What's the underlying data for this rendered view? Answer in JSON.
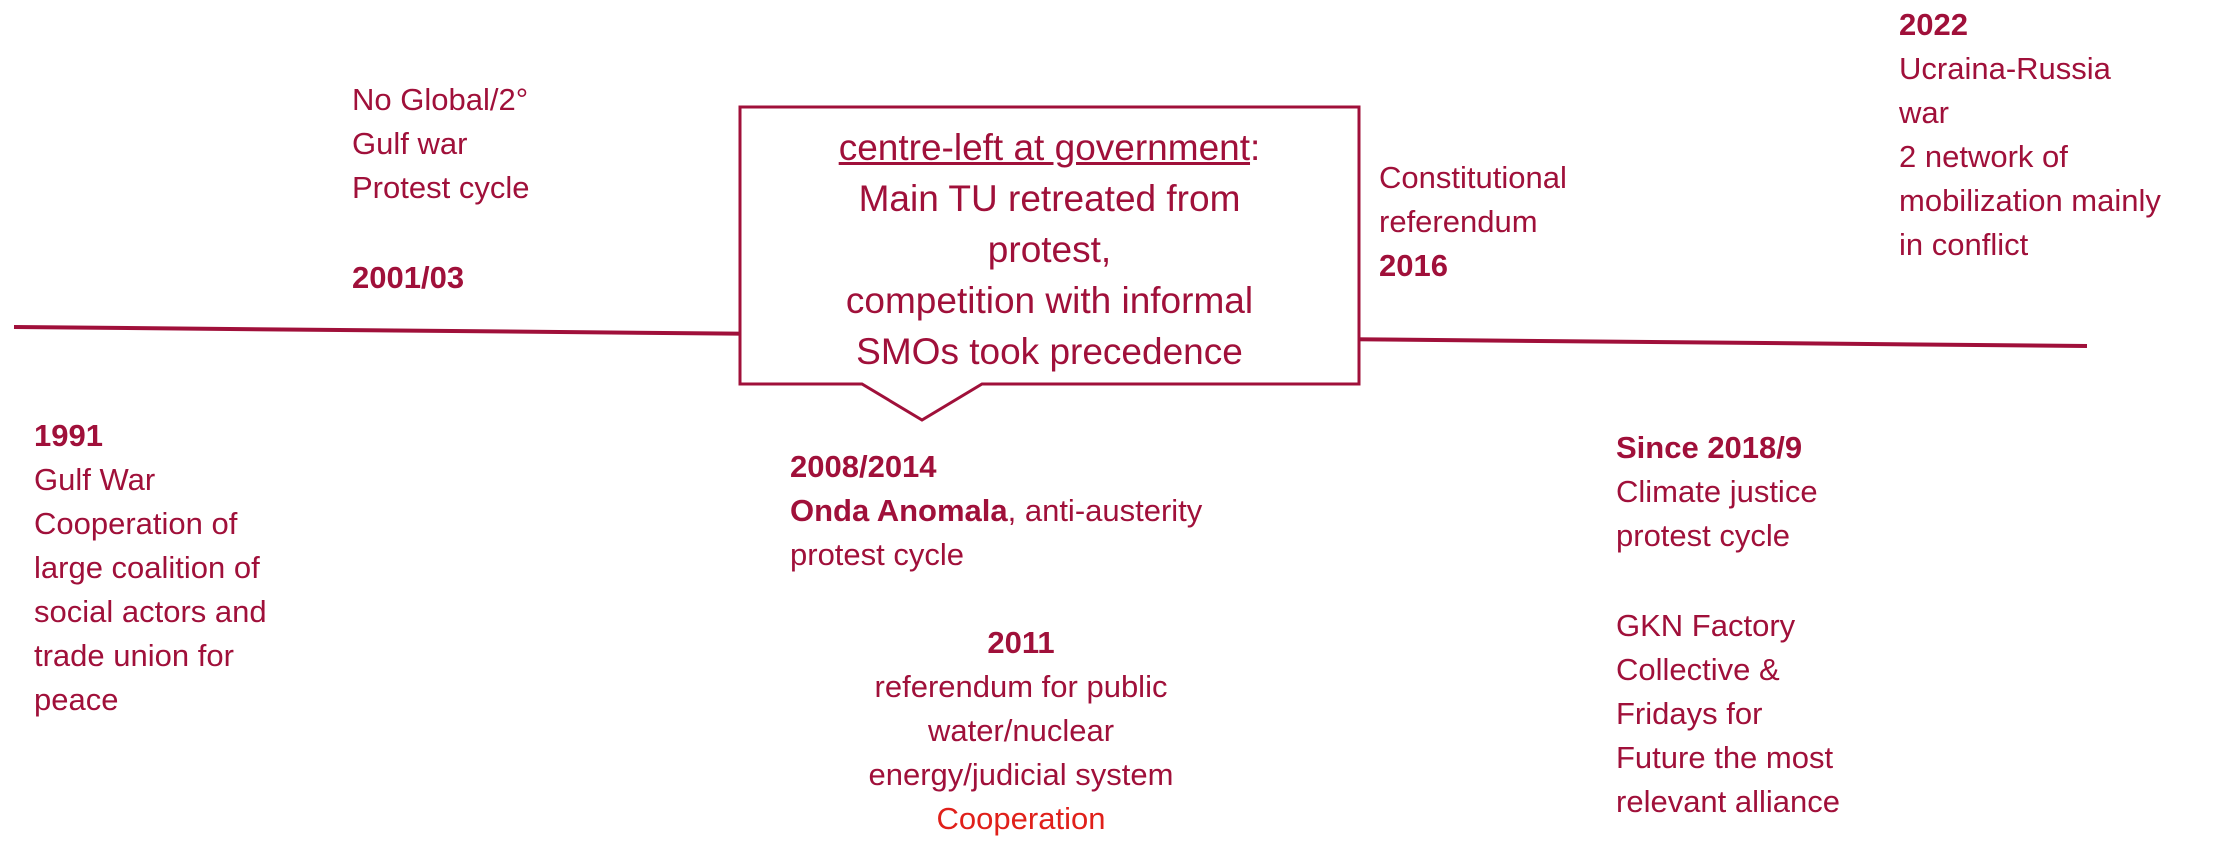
{
  "y2001": {
    "lines": [
      "No Global/2°",
      "Gulf war",
      "Protest cycle"
    ],
    "year": "2001/03"
  },
  "box": {
    "underlined": "centre-left at government",
    "colon": ":",
    "lines": [
      "Main TU retreated from",
      "protest,",
      "competition with informal",
      "SMOs took precedence"
    ]
  },
  "y2016": {
    "lines": [
      "Constitutional",
      "referendum"
    ],
    "year": "2016"
  },
  "y2022": {
    "year": "2022",
    "lines": [
      "Ucraina-Russia",
      "war",
      "2 network of",
      "mobilization mainly",
      "in conflict"
    ]
  },
  "y1991": {
    "year": "1991",
    "lines": [
      "Gulf War",
      "Cooperation of",
      "large coalition of",
      "social actors and",
      "trade union for",
      "peace"
    ]
  },
  "y2008": {
    "year": "2008/2014",
    "bold": "Onda Anomala",
    "rest": ", anti-austerity",
    "lines": [
      "protest cycle"
    ]
  },
  "y2011": {
    "year": "2011",
    "lines": [
      "referendum for public",
      "water/nuclear",
      "energy/judicial system"
    ],
    "highlight": "Cooperation"
  },
  "y2018": {
    "year": "Since 2018/9",
    "lines": [
      "Climate justice",
      "protest cycle"
    ],
    "lines2": [
      "GKN Factory",
      "Collective &",
      "Fridays for",
      "Future the most",
      "relevant alliance"
    ]
  }
}
